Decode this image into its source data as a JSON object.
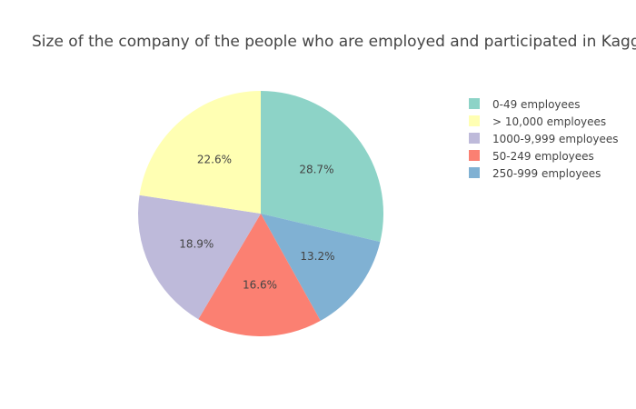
{
  "chart_data": {
    "type": "pie",
    "title": "Size of the company of the people who are employed and participated in Kaggle survey",
    "labels": [
      "0-49 employees",
      "250-999 employees",
      "50-249 employees",
      "1000-9,999 employees",
      "> 10,000 employees"
    ],
    "values": [
      28.7,
      13.2,
      16.6,
      18.9,
      22.6
    ],
    "value_labels": [
      "28.7%",
      "13.2%",
      "16.6%",
      "18.9%",
      "22.6%"
    ],
    "colors": [
      "#8dd3c7",
      "#80b1d3",
      "#fb8072",
      "#bebada",
      "#ffffb3"
    ],
    "direction": "clockwise",
    "start": "12 o'clock",
    "legend_entries": [
      {
        "label": "0-49 employees",
        "color": "#8dd3c7"
      },
      {
        "label": "> 10,000 employees",
        "color": "#ffffb3"
      },
      {
        "label": "1000-9,999 employees",
        "color": "#bebada"
      },
      {
        "label": "50-249 employees",
        "color": "#fb8072"
      },
      {
        "label": "250-999 employees",
        "color": "#80b1d3"
      }
    ],
    "legend_position": "right"
  }
}
